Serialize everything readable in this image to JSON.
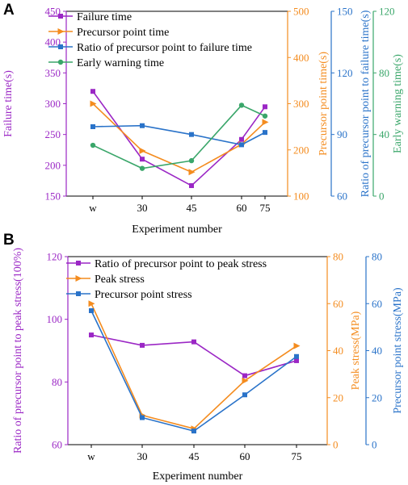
{
  "colors": {
    "purple": "#9b27c5",
    "orange": "#f48c1f",
    "blue": "#2a73c9",
    "green": "#3aa66a",
    "black": "#000000"
  },
  "chart_data": [
    {
      "panel": "A",
      "type": "line",
      "categories": [
        "w",
        "30",
        "45",
        "60",
        "75"
      ],
      "xlabel": "Experiment number",
      "axes": [
        {
          "id": "a1",
          "label": "Failure time(s)",
          "color": "#9b27c5",
          "ylim": [
            150,
            450
          ],
          "ticks": [
            150,
            200,
            250,
            300,
            350,
            400,
            450
          ]
        },
        {
          "id": "a2",
          "label": "Precursor point time(s)",
          "color": "#f48c1f",
          "ylim": [
            100,
            500
          ],
          "ticks": [
            100,
            200,
            300,
            400,
            500
          ]
        },
        {
          "id": "a3",
          "label": "Ratio of precursor point to failure time(s)",
          "color": "#2a73c9",
          "ylim": [
            60,
            150
          ],
          "ticks": [
            60,
            90,
            120,
            150
          ]
        },
        {
          "id": "a4",
          "label": "Early warning time(s)",
          "color": "#3aa66a",
          "ylim": [
            0,
            120
          ],
          "ticks": [
            0,
            40,
            80,
            120
          ]
        }
      ],
      "series": [
        {
          "name": "Failure time",
          "axis": "a1",
          "color": "#9b27c5",
          "marker": "square",
          "values": [
            320,
            210,
            167,
            242,
            295
          ]
        },
        {
          "name": "Precursor point time",
          "axis": "a2",
          "color": "#f48c1f",
          "marker": "triangle-right",
          "values": [
            300,
            198,
            152,
            212,
            260
          ]
        },
        {
          "name": "Ratio of precursor point to failure time",
          "axis": "a3",
          "color": "#2a73c9",
          "marker": "square",
          "values": [
            93.8,
            94.3,
            90,
            85,
            91
          ]
        },
        {
          "name": "Early warning time",
          "axis": "a4",
          "color": "#3aa66a",
          "marker": "circle",
          "values": [
            33,
            18,
            23,
            59,
            52
          ]
        }
      ],
      "legend_position": "top-left"
    },
    {
      "panel": "B",
      "type": "line",
      "categories": [
        "w",
        "30",
        "45",
        "60",
        "75"
      ],
      "xlabel": "Experiment number",
      "axes": [
        {
          "id": "b1",
          "label": "Ratio of precursor point to peak stress(100%)",
          "color": "#9b27c5",
          "ylim": [
            60,
            120
          ],
          "ticks": [
            60,
            80,
            100,
            120
          ]
        },
        {
          "id": "b2",
          "label": "Peak stress(MPa)",
          "color": "#f48c1f",
          "ylim": [
            0,
            80
          ],
          "ticks": [
            0,
            20,
            40,
            60,
            80
          ]
        },
        {
          "id": "b3",
          "label": "Precursor point stress(MPa)",
          "color": "#2a73c9",
          "ylim": [
            0,
            80
          ],
          "ticks": [
            0,
            20,
            40,
            60,
            80
          ]
        }
      ],
      "series": [
        {
          "name": "Ratio of precursor point to peak stress",
          "axis": "b1",
          "color": "#9b27c5",
          "marker": "square",
          "values": [
            95,
            91.7,
            92.8,
            82,
            86.8
          ]
        },
        {
          "name": "Peak stress",
          "axis": "b2",
          "color": "#f48c1f",
          "marker": "triangle-right",
          "values": [
            60,
            12.5,
            6.8,
            27.2,
            42
          ]
        },
        {
          "name": "Precursor point stress",
          "axis": "b3",
          "color": "#2a73c9",
          "marker": "square",
          "values": [
            57,
            11.5,
            5.8,
            21.2,
            37.5
          ]
        }
      ],
      "legend_position": "top-left"
    }
  ]
}
